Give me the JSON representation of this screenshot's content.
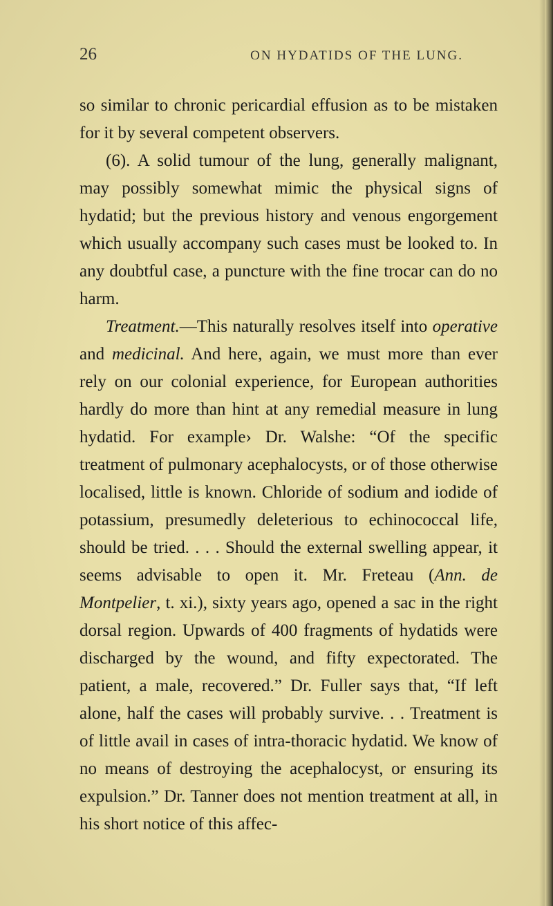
{
  "page": {
    "number": "26",
    "running_head": "ON HYDATIDS OF THE LUNG.",
    "background_color": "#e8dfa8",
    "text_color": "#1a1a1a",
    "body_fontsize": 25,
    "line_height": 1.6,
    "header_fontsize": 19
  },
  "para1": {
    "text": "so similar to chronic pericardial effusion as to be mis­taken for it by several competent observers."
  },
  "para2": {
    "text_a": "(6). A solid tumour of the lung, generally malig­nant, may possibly somewhat mimic the physical signs of hydatid; but the previous history and venous en­gorgement which usually accompany such cases must be looked to. In any doubtful case, a puncture with the fine trocar can do no harm."
  },
  "para3": {
    "italic_a": "Treatment.",
    "text_a": "—This naturally resolves itself into ",
    "italic_b": "operative",
    "text_b": " and ",
    "italic_c": "medicinal.",
    "text_c": " And here, again, we must more than ever rely on our colonial experience, for European authorities hardly do more than hint at any remedial measure in lung hydatid. For example› Dr. Walshe: “Of the specific treatment of pulmo­nary acephalocysts, or of those otherwise localised, little is known. Chloride of sodium and iodide of potassium, presumedly deleterious to echinococcal life, should be tried. . . . Should the external swelling appear, it seems advisable to open it. Mr. Freteau (",
    "italic_d": "Ann. de Montpelier",
    "text_d": ", t. xi.), sixty years ago, opened a sac in the right dorsal region. Upwards of 400 fragments of hydatids were discharged by the wound, and fifty expectorated. The patient, a male, recovered.” Dr. Fuller says that, “If left alone, half the cases will probably survive. . . Treatment is of little avail in cases of intra-thoracic hydatid. We know of no means of destroying the acephalocyst, or ensuring its expulsion.” Dr. Tanner does not men­tion treatment at all, in his short notice of this affec-"
  }
}
